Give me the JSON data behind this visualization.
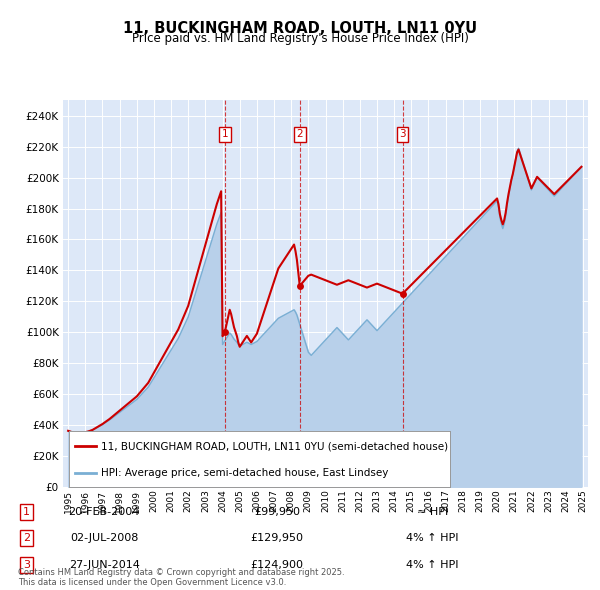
{
  "title": "11, BUCKINGHAM ROAD, LOUTH, LN11 0YU",
  "subtitle": "Price paid vs. HM Land Registry's House Price Index (HPI)",
  "yticks": [
    0,
    20000,
    40000,
    60000,
    80000,
    100000,
    120000,
    140000,
    160000,
    180000,
    200000,
    220000,
    240000
  ],
  "ylim": [
    0,
    250000
  ],
  "fig_bg_color": "#ffffff",
  "plot_bg_color": "#dde8f8",
  "grid_color": "#ffffff",
  "sale_color": "#cc0000",
  "hpi_fill_color": "#b8d0ea",
  "hpi_line_color": "#7aafd4",
  "transactions": [
    {
      "num": 1,
      "date": "20-FEB-2004",
      "price": 99950,
      "vs_hpi": "≈ HPI",
      "x_year": 2004.13
    },
    {
      "num": 2,
      "date": "02-JUL-2008",
      "price": 129950,
      "vs_hpi": "4% ↑ HPI",
      "x_year": 2008.5
    },
    {
      "num": 3,
      "date": "27-JUN-2014",
      "price": 124900,
      "vs_hpi": "4% ↑ HPI",
      "x_year": 2014.49
    }
  ],
  "hpi_years": [
    1995.0,
    1995.083,
    1995.167,
    1995.25,
    1995.333,
    1995.417,
    1995.5,
    1995.583,
    1995.667,
    1995.75,
    1995.833,
    1995.917,
    1996.0,
    1996.083,
    1996.167,
    1996.25,
    1996.333,
    1996.417,
    1996.5,
    1996.583,
    1996.667,
    1996.75,
    1996.833,
    1996.917,
    1997.0,
    1997.083,
    1997.167,
    1997.25,
    1997.333,
    1997.417,
    1997.5,
    1997.583,
    1997.667,
    1997.75,
    1997.833,
    1997.917,
    1998.0,
    1998.083,
    1998.167,
    1998.25,
    1998.333,
    1998.417,
    1998.5,
    1998.583,
    1998.667,
    1998.75,
    1998.833,
    1998.917,
    1999.0,
    1999.083,
    1999.167,
    1999.25,
    1999.333,
    1999.417,
    1999.5,
    1999.583,
    1999.667,
    1999.75,
    1999.833,
    1999.917,
    2000.0,
    2000.083,
    2000.167,
    2000.25,
    2000.333,
    2000.417,
    2000.5,
    2000.583,
    2000.667,
    2000.75,
    2000.833,
    2000.917,
    2001.0,
    2001.083,
    2001.167,
    2001.25,
    2001.333,
    2001.417,
    2001.5,
    2001.583,
    2001.667,
    2001.75,
    2001.833,
    2001.917,
    2002.0,
    2002.083,
    2002.167,
    2002.25,
    2002.333,
    2002.417,
    2002.5,
    2002.583,
    2002.667,
    2002.75,
    2002.833,
    2002.917,
    2003.0,
    2003.083,
    2003.167,
    2003.25,
    2003.333,
    2003.417,
    2003.5,
    2003.583,
    2003.667,
    2003.75,
    2003.833,
    2003.917,
    2004.0,
    2004.083,
    2004.167,
    2004.25,
    2004.333,
    2004.417,
    2004.5,
    2004.583,
    2004.667,
    2004.75,
    2004.833,
    2004.917,
    2005.0,
    2005.083,
    2005.167,
    2005.25,
    2005.333,
    2005.417,
    2005.5,
    2005.583,
    2005.667,
    2005.75,
    2005.833,
    2005.917,
    2006.0,
    2006.083,
    2006.167,
    2006.25,
    2006.333,
    2006.417,
    2006.5,
    2006.583,
    2006.667,
    2006.75,
    2006.833,
    2006.917,
    2007.0,
    2007.083,
    2007.167,
    2007.25,
    2007.333,
    2007.417,
    2007.5,
    2007.583,
    2007.667,
    2007.75,
    2007.833,
    2007.917,
    2008.0,
    2008.083,
    2008.167,
    2008.25,
    2008.333,
    2008.417,
    2008.5,
    2008.583,
    2008.667,
    2008.75,
    2008.833,
    2008.917,
    2009.0,
    2009.083,
    2009.167,
    2009.25,
    2009.333,
    2009.417,
    2009.5,
    2009.583,
    2009.667,
    2009.75,
    2009.833,
    2009.917,
    2010.0,
    2010.083,
    2010.167,
    2010.25,
    2010.333,
    2010.417,
    2010.5,
    2010.583,
    2010.667,
    2010.75,
    2010.833,
    2010.917,
    2011.0,
    2011.083,
    2011.167,
    2011.25,
    2011.333,
    2011.417,
    2011.5,
    2011.583,
    2011.667,
    2011.75,
    2011.833,
    2011.917,
    2012.0,
    2012.083,
    2012.167,
    2012.25,
    2012.333,
    2012.417,
    2012.5,
    2012.583,
    2012.667,
    2012.75,
    2012.833,
    2012.917,
    2013.0,
    2013.083,
    2013.167,
    2013.25,
    2013.333,
    2013.417,
    2013.5,
    2013.583,
    2013.667,
    2013.75,
    2013.833,
    2013.917,
    2014.0,
    2014.083,
    2014.167,
    2014.25,
    2014.333,
    2014.417,
    2014.5,
    2014.583,
    2014.667,
    2014.75,
    2014.833,
    2014.917,
    2015.0,
    2015.083,
    2015.167,
    2015.25,
    2015.333,
    2015.417,
    2015.5,
    2015.583,
    2015.667,
    2015.75,
    2015.833,
    2015.917,
    2016.0,
    2016.083,
    2016.167,
    2016.25,
    2016.333,
    2016.417,
    2016.5,
    2016.583,
    2016.667,
    2016.75,
    2016.833,
    2016.917,
    2017.0,
    2017.083,
    2017.167,
    2017.25,
    2017.333,
    2017.417,
    2017.5,
    2017.583,
    2017.667,
    2017.75,
    2017.833,
    2017.917,
    2018.0,
    2018.083,
    2018.167,
    2018.25,
    2018.333,
    2018.417,
    2018.5,
    2018.583,
    2018.667,
    2018.75,
    2018.833,
    2018.917,
    2019.0,
    2019.083,
    2019.167,
    2019.25,
    2019.333,
    2019.417,
    2019.5,
    2019.583,
    2019.667,
    2019.75,
    2019.833,
    2019.917,
    2020.0,
    2020.083,
    2020.167,
    2020.25,
    2020.333,
    2020.417,
    2020.5,
    2020.583,
    2020.667,
    2020.75,
    2020.833,
    2020.917,
    2021.0,
    2021.083,
    2021.167,
    2021.25,
    2021.333,
    2021.417,
    2021.5,
    2021.583,
    2021.667,
    2021.75,
    2021.833,
    2021.917,
    2022.0,
    2022.083,
    2022.167,
    2022.25,
    2022.333,
    2022.417,
    2022.5,
    2022.583,
    2022.667,
    2022.75,
    2022.833,
    2022.917,
    2023.0,
    2023.083,
    2023.167,
    2023.25,
    2023.333,
    2023.417,
    2023.5,
    2023.583,
    2023.667,
    2023.75,
    2023.833,
    2023.917,
    2024.0,
    2024.083,
    2024.167,
    2024.25,
    2024.333,
    2024.417,
    2024.5,
    2024.583,
    2024.667,
    2024.75,
    2024.833,
    2024.917
  ],
  "hpi_vals": [
    36200,
    35900,
    35600,
    35400,
    35100,
    34900,
    34700,
    34500,
    34300,
    34500,
    34700,
    35000,
    35300,
    35600,
    35800,
    36100,
    36400,
    36700,
    37200,
    37700,
    38200,
    38700,
    39200,
    39700,
    40200,
    40800,
    41400,
    42000,
    42600,
    43200,
    43900,
    44600,
    45300,
    46000,
    46700,
    47400,
    48100,
    48800,
    49500,
    50200,
    50900,
    51600,
    52300,
    53000,
    53700,
    54400,
    55100,
    55800,
    56500,
    57500,
    58500,
    59500,
    60500,
    61500,
    62500,
    63500,
    64500,
    66000,
    67500,
    69000,
    70500,
    72000,
    73500,
    75000,
    76500,
    78000,
    79500,
    81000,
    82500,
    84000,
    85500,
    87000,
    88500,
    90000,
    91500,
    93000,
    94500,
    96000,
    98000,
    100000,
    102000,
    104000,
    106000,
    108000,
    110000,
    113000,
    116000,
    119000,
    122000,
    125000,
    128000,
    131000,
    134000,
    137000,
    140000,
    143000,
    146000,
    149000,
    152000,
    155000,
    158000,
    161000,
    164000,
    167000,
    170000,
    172500,
    175000,
    177500,
    92000,
    93500,
    95000,
    96500,
    98000,
    99500,
    98500,
    97000,
    95500,
    94500,
    93500,
    92000,
    91000,
    91500,
    92000,
    92500,
    93000,
    93500,
    93000,
    92500,
    92000,
    92500,
    93000,
    93500,
    94000,
    95000,
    96000,
    97000,
    98000,
    99000,
    100000,
    101000,
    102000,
    103000,
    104000,
    105000,
    106000,
    107000,
    108000,
    109000,
    109500,
    110000,
    110500,
    111000,
    111500,
    112000,
    112500,
    113000,
    113500,
    114000,
    114500,
    113000,
    111000,
    108000,
    105000,
    102000,
    99000,
    96000,
    93000,
    90000,
    87000,
    86000,
    85000,
    86000,
    87000,
    88000,
    89000,
    90000,
    91000,
    92000,
    93000,
    94000,
    95000,
    96000,
    97000,
    98000,
    99000,
    100000,
    101000,
    102000,
    103000,
    102000,
    101000,
    100000,
    99000,
    98000,
    97000,
    96000,
    95000,
    96000,
    97000,
    98000,
    99000,
    100000,
    101000,
    102000,
    103000,
    104000,
    105000,
    106000,
    107000,
    108000,
    107000,
    106000,
    105000,
    104000,
    103000,
    102000,
    101000,
    102000,
    103000,
    104000,
    105000,
    106000,
    107000,
    108000,
    109000,
    110000,
    111000,
    112000,
    113000,
    114000,
    115000,
    116000,
    117000,
    118000,
    119000,
    120000,
    121000,
    122000,
    123000,
    124000,
    125000,
    126000,
    127000,
    128000,
    129000,
    130000,
    131000,
    132000,
    133000,
    134000,
    135000,
    136000,
    137000,
    138000,
    139000,
    140000,
    141000,
    142000,
    143000,
    144000,
    145000,
    146000,
    147000,
    148000,
    149000,
    150000,
    151000,
    152000,
    153000,
    154000,
    155000,
    156000,
    157000,
    158000,
    159000,
    160000,
    161000,
    162000,
    163000,
    164000,
    165000,
    166000,
    167000,
    168000,
    169000,
    170000,
    171000,
    172000,
    173000,
    174000,
    175000,
    176000,
    177000,
    178000,
    179000,
    180000,
    181000,
    182000,
    183000,
    184000,
    185000,
    181000,
    174000,
    170000,
    167000,
    170000,
    175000,
    182000,
    188000,
    193000,
    198000,
    202000,
    207000,
    212000,
    217000,
    219000,
    216000,
    213000,
    210000,
    207000,
    204000,
    201000,
    198000,
    195000,
    192000,
    194000,
    196000,
    198000,
    200000,
    199000,
    198000,
    197000,
    196000,
    195000,
    194000,
    193000,
    192000,
    191000,
    190000,
    189000,
    188000,
    189000,
    190000,
    191000,
    192000,
    193000,
    194000,
    195000,
    196000,
    197000,
    198000,
    199000,
    200000,
    201000,
    202000,
    203000,
    204000,
    205000,
    206000,
    207000
  ],
  "xtick_years": [
    1995,
    1996,
    1997,
    1998,
    1999,
    2000,
    2001,
    2002,
    2003,
    2004,
    2005,
    2006,
    2007,
    2008,
    2009,
    2010,
    2011,
    2012,
    2013,
    2014,
    2015,
    2016,
    2017,
    2018,
    2019,
    2020,
    2021,
    2022,
    2023,
    2024,
    2025
  ],
  "xlim": [
    1994.7,
    2025.3
  ],
  "footer_text": "Contains HM Land Registry data © Crown copyright and database right 2025.\nThis data is licensed under the Open Government Licence v3.0.",
  "legend_label_sale": "11, BUCKINGHAM ROAD, LOUTH, LN11 0YU (semi-detached house)",
  "legend_label_hpi": "HPI: Average price, semi-detached house, East Lindsey"
}
